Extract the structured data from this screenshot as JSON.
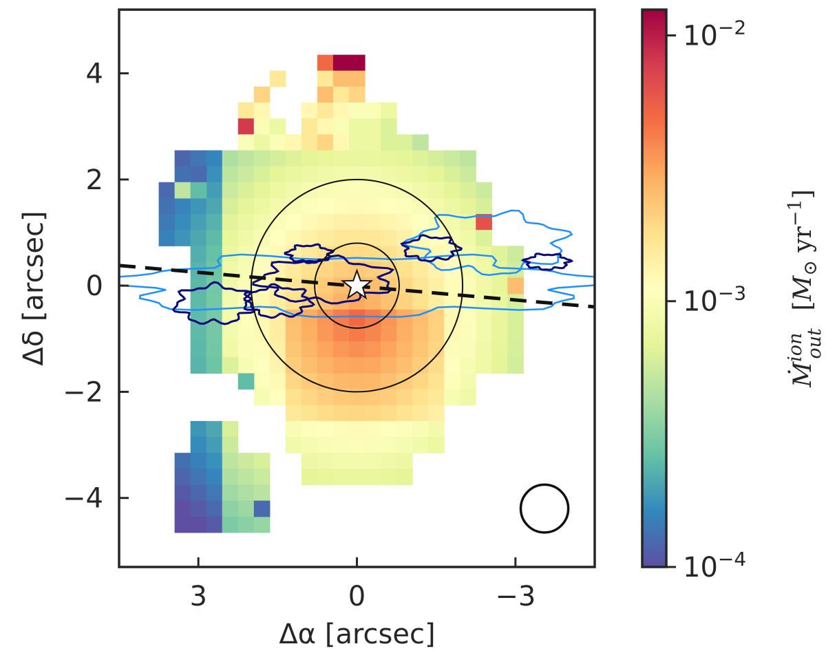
{
  "chart_data": {
    "type": "heatmap",
    "title": "",
    "xlabel": "Δα [arcsec]",
    "ylabel": "Δδ [arcsec]",
    "x_axis_inverted": true,
    "xlim": [
      4.5,
      -4.5
    ],
    "ylim": [
      -5.3,
      5.2
    ],
    "xticks": [
      {
        "value": 3,
        "label": "3"
      },
      {
        "value": 0,
        "label": "0"
      },
      {
        "value": -3,
        "label": "−3"
      }
    ],
    "yticks": [
      {
        "value": 4,
        "label": "4"
      },
      {
        "value": 2,
        "label": "2"
      },
      {
        "value": 0,
        "label": "0"
      },
      {
        "value": -2,
        "label": "−2"
      },
      {
        "value": -4,
        "label": "−4"
      }
    ],
    "grid": false,
    "colorbar": {
      "label": "Ṁ_out^ion [M⊙ yr⁻¹]",
      "scale": "log",
      "range": [
        0.0001,
        0.0125
      ],
      "colormap": "Spectral_r",
      "ticks": [
        {
          "value": 0.0001,
          "label_base": "10",
          "label_exp": "−4"
        },
        {
          "value": 0.001,
          "label_base": "10",
          "label_exp": "−3"
        },
        {
          "value": 0.01,
          "label_base": "10",
          "label_exp": "−2"
        }
      ],
      "stops": [
        "#5e4fa2",
        "#3288bd",
        "#66c2a5",
        "#abdda4",
        "#e6f598",
        "#ffffbf",
        "#fee08b",
        "#fdae61",
        "#f46d43",
        "#d53e4f",
        "#9e0142"
      ]
    },
    "pixel_size_arcsec": 0.3,
    "pixel_grid": {
      "description": "Each row lists an arcsec Δδ center and segments of constant log10(Ṁ) along Δα (start/end in arcsec, eastmost first).",
      "rows": [
        {
          "y": 4.2,
          "cells": [
            {
              "x": 0.6,
              "v": -2.3
            },
            {
              "x": 0.3,
              "v": -1.9
            },
            {
              "x": 0.0,
              "v": -1.9
            }
          ]
        },
        {
          "y": 3.9,
          "cells": [
            {
              "x": 1.5,
              "v": -2.8
            },
            {
              "x": 0.6,
              "v": -2.8
            },
            {
              "x": 0.3,
              "v": -2.6
            },
            {
              "x": 0.0,
              "v": -2.6
            }
          ]
        },
        {
          "y": 3.6,
          "cells": [
            {
              "x": 1.8,
              "v": -2.7
            },
            {
              "x": 0.6,
              "v": -2.6
            },
            {
              "x": 0.3,
              "v": -2.8
            },
            {
              "x": 0.0,
              "v": -2.7
            }
          ]
        },
        {
          "y": 3.3,
          "cells": [
            {
              "x": 2.1,
              "v": -2.8
            },
            {
              "x": 1.8,
              "v": -2.9
            },
            {
              "x": 0.9,
              "v": -2.9
            },
            {
              "x": 0.6,
              "v": -2.8
            },
            {
              "x": 0.3,
              "v": -2.9
            },
            {
              "x": 0.0,
              "v": -3.0
            },
            {
              "x": -0.3,
              "v": -3.0
            },
            {
              "x": -0.6,
              "v": -3.1
            }
          ]
        },
        {
          "y": 3.0,
          "cells": [
            {
              "x": 2.1,
              "v": -2.1
            },
            {
              "x": 1.8,
              "v": -3.0
            },
            {
              "x": 1.5,
              "v": -3.1
            },
            {
              "x": 0.9,
              "v": -2.8
            },
            {
              "x": 0.6,
              "v": -2.9
            },
            {
              "x": 0.3,
              "v": -3.0
            },
            {
              "x": 0.0,
              "v": -3.1
            },
            {
              "x": -0.3,
              "v": -3.1
            },
            {
              "x": -0.6,
              "v": -3.2
            }
          ]
        },
        {
          "y": 2.7,
          "cells": [
            {
              "x": 2.1,
              "v": -3.0
            },
            {
              "x": 1.8,
              "v": -3.1
            },
            {
              "x": 1.5,
              "v": -3.0
            },
            {
              "x": 1.2,
              "v": -2.9
            },
            {
              "x": 0.9,
              "v": -2.8
            },
            {
              "x": 0.6,
              "v": -2.7
            },
            {
              "x": 0.3,
              "v": -2.9
            },
            {
              "x": 0.0,
              "v": -3.1
            },
            {
              "x": -0.3,
              "v": -3.1
            },
            {
              "x": -0.6,
              "v": -3.2
            },
            {
              "x": -0.9,
              "v": -3.2
            },
            {
              "x": -1.2,
              "v": -3.3
            }
          ]
        }
      ]
    },
    "overlays": {
      "star_marker": {
        "x": 0.0,
        "y": 0.0
      },
      "circles": [
        {
          "cx": 0.0,
          "cy": 0.0,
          "radius": 2.0
        },
        {
          "cx": 0.0,
          "cy": 0.0,
          "radius": 0.8
        }
      ],
      "beam_circle": {
        "cx": -3.55,
        "cy": -4.2,
        "radius": 0.45
      },
      "dashed_line": {
        "x1": 4.5,
        "y1": 0.38,
        "x2": -4.5,
        "y2": -0.4
      },
      "contour_colors": {
        "outer": "#1e90ff",
        "inner": "#0a0a7a"
      }
    }
  }
}
